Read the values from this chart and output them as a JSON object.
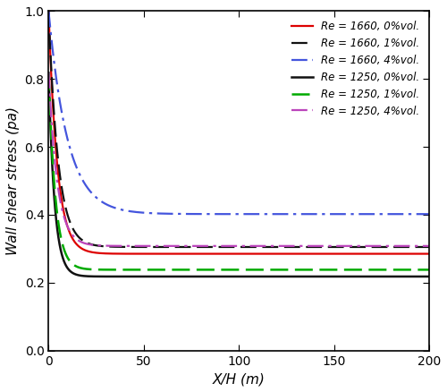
{
  "xlabel": "X/H (m)",
  "ylabel": "Wall shear stress (pa)",
  "xlim": [
    0,
    200
  ],
  "ylim": [
    0,
    1
  ],
  "xticks": [
    0,
    50,
    100,
    150,
    200
  ],
  "yticks": [
    0,
    0.2,
    0.4,
    0.6,
    0.8,
    1.0
  ],
  "curves": [
    {
      "label": "Re = 1660, 0%vol.",
      "color": "#dd0000",
      "linestyle": "solid",
      "linewidth": 1.6,
      "x0": 0.5,
      "start_val": 1.0,
      "decay_k": 0.22,
      "asymptote": 0.285
    },
    {
      "label": "Re = 1660, 1%vol.",
      "color": "#111111",
      "linestyle": "dashed",
      "linewidth": 1.6,
      "x0": 0.5,
      "start_val": 1.0,
      "decay_k": 0.2,
      "asymptote": 0.305
    },
    {
      "label": "Re = 1660, 4%vol.",
      "color": "#4455dd",
      "linestyle": "dashdot",
      "linewidth": 1.6,
      "x0": 0.5,
      "start_val": 1.0,
      "decay_k": 0.1,
      "asymptote": 0.402
    },
    {
      "label": "Re = 1250, 0%vol.",
      "color": "#111111",
      "linestyle": "solid",
      "linewidth": 1.8,
      "x0": 0.5,
      "start_val": 0.82,
      "decay_k": 0.32,
      "asymptote": 0.218
    },
    {
      "label": "Re = 1250, 1%vol.",
      "color": "#00aa00",
      "linestyle": "dashed",
      "linewidth": 1.8,
      "x0": 0.5,
      "start_val": 0.82,
      "decay_k": 0.28,
      "asymptote": 0.238
    },
    {
      "label": "Re = 1250, 4%vol.",
      "color": "#bb44bb",
      "linestyle": "dashdot",
      "linewidth": 1.6,
      "x0": 0.5,
      "start_val": 0.82,
      "decay_k": 0.22,
      "asymptote": 0.308
    }
  ],
  "legend_loc": "upper right",
  "legend_fontsize": 8.5,
  "axis_fontsize": 11,
  "tick_fontsize": 10,
  "figsize": [
    5.0,
    4.38
  ],
  "dpi": 100
}
